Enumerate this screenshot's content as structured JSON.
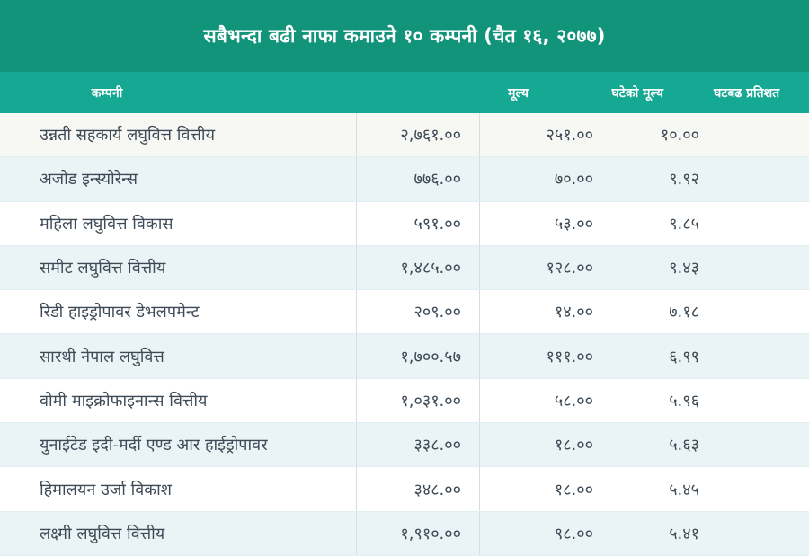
{
  "title": "सबैभन्दा बढी नाफा कमाउने १० कम्पनी (चैत १६, २०७७)",
  "colors": {
    "title_bg": "#12947a",
    "header_bg": "#15a893",
    "alt_row_bg": "#eaf4f7"
  },
  "chart_data": {
    "type": "table",
    "title": "सबैभन्दा बढी नाफा कमाउने १० कम्पनी (चैत १६, २०७७)",
    "columns": [
      "कम्पनी",
      "मूल्य",
      "घटेको मूल्य",
      "घटबढ प्रतिशत"
    ],
    "rows": [
      [
        "उन्नती सहकार्य लघुवित्त वित्तीय",
        "२,७६१.००",
        "२५१.००",
        "१०.००"
      ],
      [
        "अजोड इन्स्योरेन्स",
        "७७६.००",
        "७०.००",
        "९.९२"
      ],
      [
        "महिला लघुवित्त विकास",
        "५९१.००",
        "५३.००",
        "९.८५"
      ],
      [
        "समीट लघुवित्त वित्तीय",
        "१,४८५.००",
        "१२८.००",
        "९.४३"
      ],
      [
        "रिडी हाइड्रोपावर डेभलपमेन्ट",
        "२०९.००",
        "१४.००",
        "७.१८"
      ],
      [
        "सारथी नेपाल लघुवित्त",
        "१,७००.५७",
        "१११.००",
        "६.९९"
      ],
      [
        "वोमी माइक्रोफाइनान्स वित्तीय",
        "१,०३१.००",
        "५८.००",
        "५.९६"
      ],
      [
        "युनाईटेड इदी-मर्दी एण्ड आर हाईड्रोपावर",
        "३३८.००",
        "१८.००",
        "५.६३"
      ],
      [
        "हिमालयन उर्जा विकाश",
        "३४८.००",
        "१८.००",
        "५.४५"
      ],
      [
        "लक्ष्मी लघुवित्त वित्तीय",
        "१,९१०.००",
        "९८.००",
        "५.४१"
      ]
    ]
  }
}
